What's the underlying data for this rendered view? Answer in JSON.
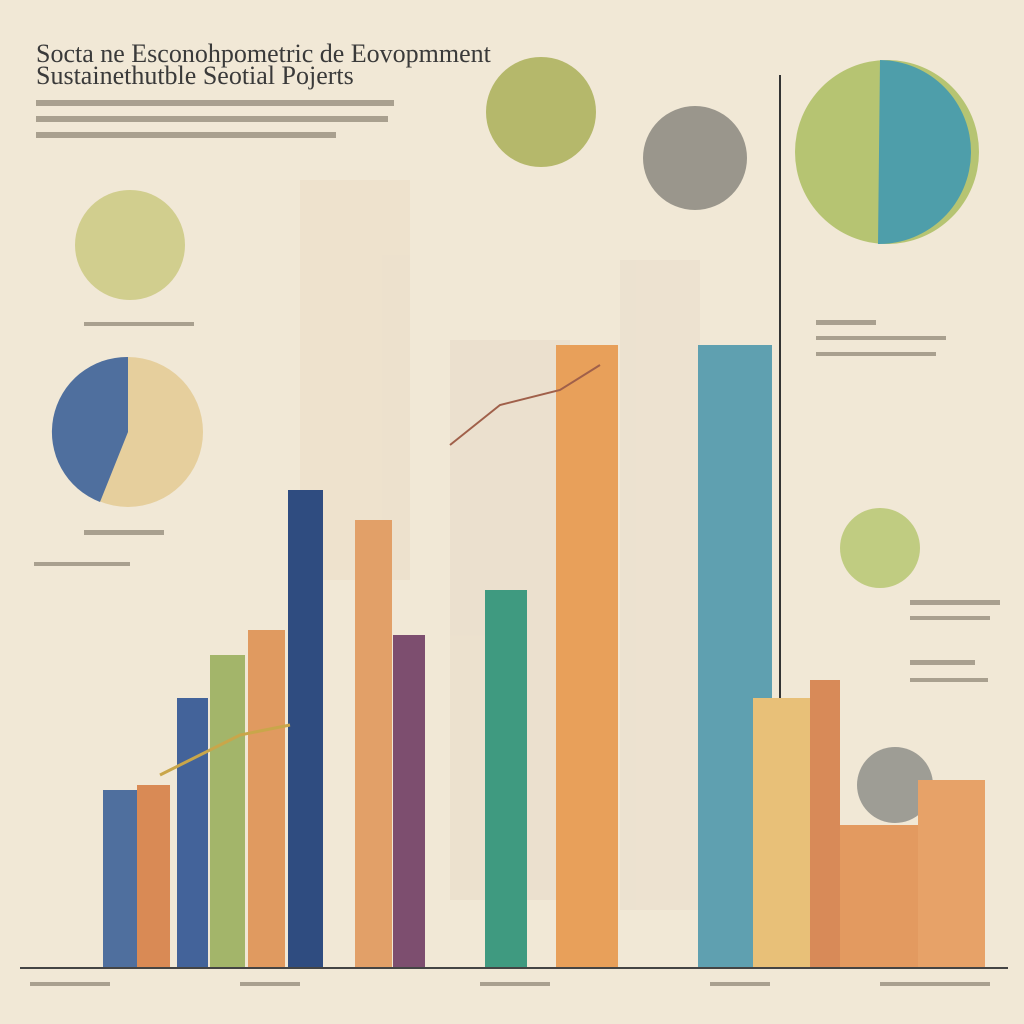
{
  "header": {
    "title": "Socta ne Esconohpometric de Eovopmment",
    "subtitle": "Sustainethutble  Seotial Pojerts"
  }
}
